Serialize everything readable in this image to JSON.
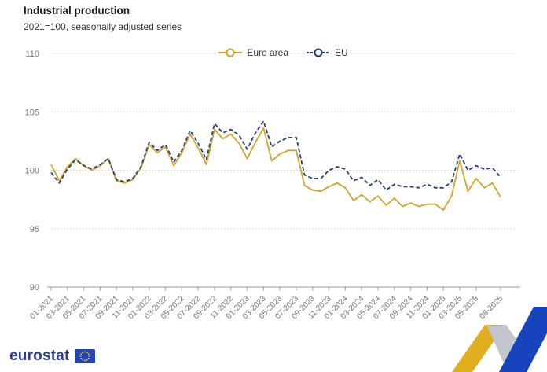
{
  "header": {
    "title": "Industrial production",
    "subtitle": "2021=100, seasonally adjusted series"
  },
  "legend": {
    "items": [
      {
        "label": "Euro area",
        "color": "#D3A429",
        "style": "solid"
      },
      {
        "label": "EU",
        "color": "#253E7E",
        "style": "dashed"
      }
    ]
  },
  "chart_data": {
    "type": "line",
    "title": "Industrial production",
    "subtitle": "2021=100, seasonally adjusted series",
    "xlabel": "",
    "ylabel": "",
    "ylim": [
      90,
      110
    ],
    "yticks": [
      90,
      95,
      100,
      105,
      110
    ],
    "grid": true,
    "legend_position": "top-center",
    "x": [
      "01-2021",
      "02-2021",
      "03-2021",
      "04-2021",
      "05-2021",
      "06-2021",
      "07-2021",
      "08-2021",
      "09-2021",
      "10-2021",
      "11-2021",
      "12-2021",
      "01-2022",
      "02-2022",
      "03-2022",
      "04-2022",
      "05-2022",
      "06-2022",
      "07-2022",
      "08-2022",
      "09-2022",
      "10-2022",
      "11-2022",
      "12-2022",
      "01-2023",
      "02-2023",
      "03-2023",
      "04-2023",
      "05-2023",
      "06-2023",
      "07-2023",
      "08-2023",
      "09-2023",
      "10-2023",
      "11-2023",
      "12-2023",
      "01-2024",
      "02-2024",
      "03-2024",
      "04-2024",
      "05-2024",
      "06-2024",
      "07-2024",
      "08-2024",
      "09-2024",
      "10-2024",
      "11-2024",
      "12-2024",
      "01-2025",
      "02-2025",
      "03-2025",
      "04-2025",
      "05-2025",
      "06-2025",
      "07-2025",
      "08-2025"
    ],
    "tick_labels": [
      "01-2021",
      "03-2021",
      "05-2021",
      "07-2021",
      "09-2021",
      "11-2021",
      "01-2022",
      "03-2022",
      "05-2022",
      "07-2022",
      "09-2022",
      "11-2022",
      "01-2023",
      "03-2023",
      "05-2023",
      "07-2023",
      "09-2023",
      "11-2023",
      "01-2024",
      "03-2024",
      "05-2024",
      "07-2024",
      "09-2024",
      "11-2024",
      "01-2025",
      "03-2025",
      "05-2025",
      "08-2025"
    ],
    "series": [
      {
        "name": "Euro area",
        "color": "#D3A429",
        "style": "solid",
        "values": [
          100.5,
          99.1,
          100.3,
          101.0,
          100.4,
          100.0,
          100.4,
          101.0,
          99.1,
          98.9,
          99.2,
          100.2,
          102.2,
          101.5,
          102.0,
          100.4,
          101.5,
          103.1,
          101.9,
          100.5,
          103.5,
          102.7,
          103.1,
          102.3,
          101.0,
          102.4,
          103.6,
          100.8,
          101.4,
          101.7,
          101.7,
          98.7,
          98.3,
          98.2,
          98.6,
          98.9,
          98.5,
          97.4,
          97.9,
          97.3,
          97.8,
          97.0,
          97.6,
          96.9,
          97.2,
          96.9,
          97.1,
          97.1,
          96.6,
          97.8,
          100.8,
          98.2,
          99.3,
          98.5,
          98.9,
          97.7
        ]
      },
      {
        "name": "EU",
        "color": "#253E7E",
        "style": "dashed",
        "values": [
          99.8,
          98.9,
          100.1,
          100.9,
          100.4,
          100.1,
          100.5,
          101.0,
          99.2,
          99.0,
          99.3,
          100.3,
          102.4,
          101.7,
          102.2,
          100.7,
          101.7,
          103.4,
          102.3,
          100.9,
          104.0,
          103.2,
          103.5,
          103.0,
          101.8,
          103.2,
          104.2,
          102.0,
          102.5,
          102.8,
          102.8,
          99.6,
          99.3,
          99.3,
          100.0,
          100.3,
          100.1,
          99.1,
          99.4,
          98.7,
          99.2,
          98.3,
          98.8,
          98.6,
          98.6,
          98.5,
          98.8,
          98.5,
          98.5,
          99.0,
          101.4,
          100.0,
          100.4,
          100.1,
          100.2,
          99.4
        ]
      }
    ]
  },
  "footer": {
    "logo_text": "eurostat"
  },
  "style_colors": {
    "axis_line": "#999999",
    "grid_line": "#dcdcdc",
    "tick_text": "#737373",
    "ribbon_blue": "#1743BC",
    "ribbon_yellow": "#E0AE1F",
    "ribbon_gray": "#C2C6CC",
    "flag_blue": "#2445B5",
    "flag_stars": "#FFCC00"
  }
}
